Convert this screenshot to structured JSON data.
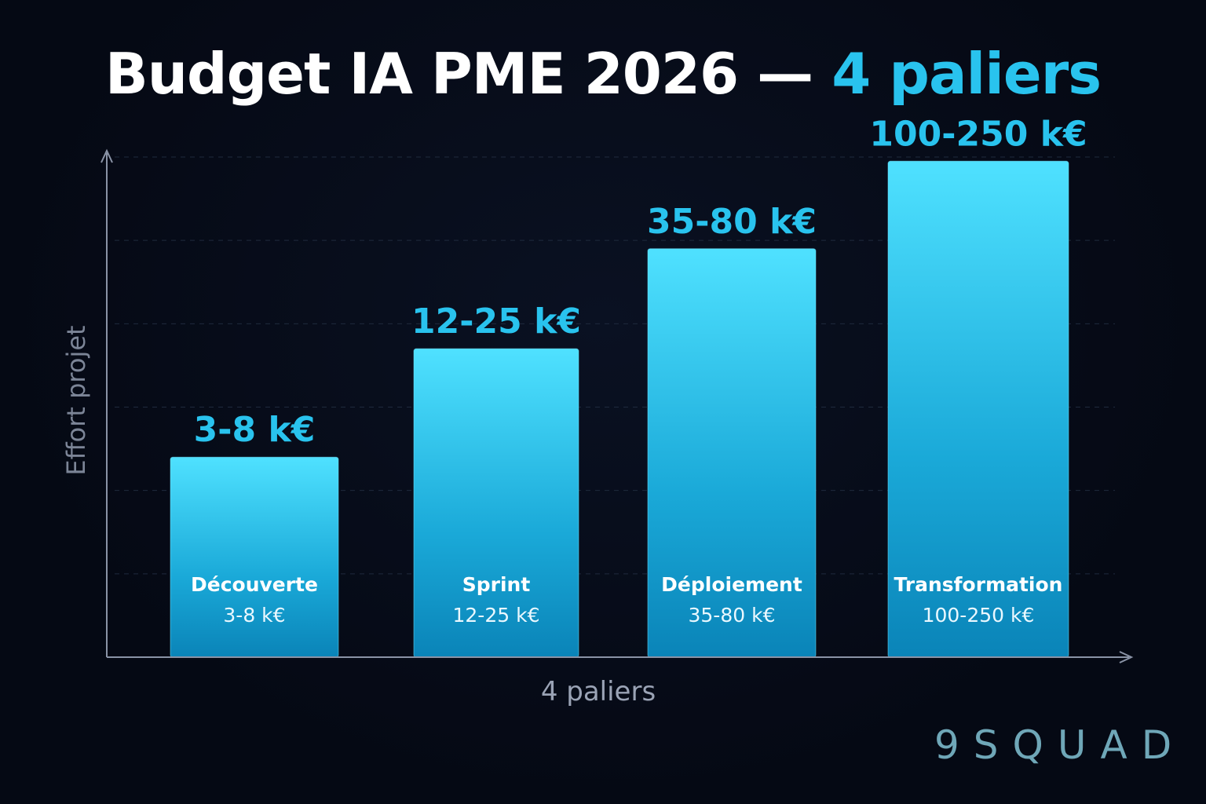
{
  "title": {
    "main": "Budget IA PME 2026 — ",
    "accent": "4 paliers"
  },
  "brand": "9SQUAD",
  "colors": {
    "background": "#050914",
    "bar_top": "#4fe1ff",
    "bar_bottom": "#0a84b8",
    "accent": "#29c3ee",
    "axis": "#8a93a6",
    "brand": "#6fa7b8"
  },
  "chart_data": {
    "type": "bar",
    "title": "Budget IA PME 2026 — 4 paliers",
    "xlabel": "4 paliers",
    "ylabel": "Effort projet",
    "grid": true,
    "ylim": [
      0,
      6
    ],
    "categories": [
      "Découverte",
      "Sprint",
      "Déploiement",
      "Transformation"
    ],
    "values": [
      2.4,
      3.7,
      4.9,
      5.95
    ],
    "value_labels": [
      "3-8 k€",
      "12-25 k€",
      "35-80 k€",
      "100-250 k€"
    ],
    "inner_labels": [
      "3-8 k€",
      "12-25 k€",
      "35-80 k€",
      "100-250 k€"
    ]
  }
}
